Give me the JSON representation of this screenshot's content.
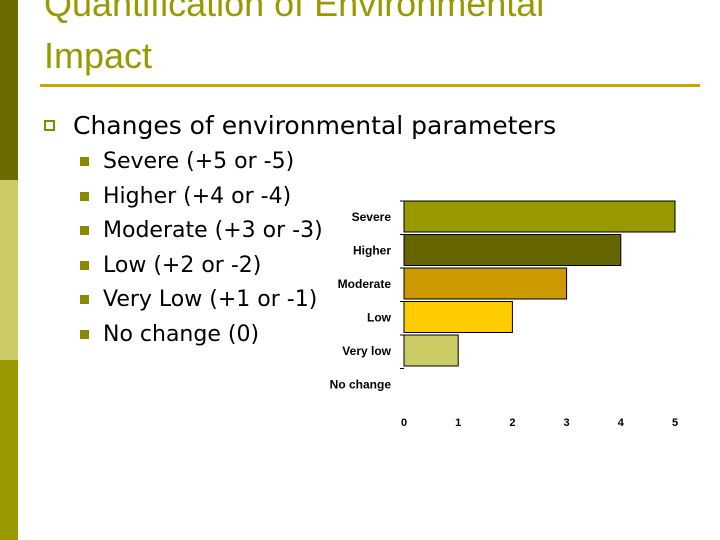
{
  "slide": {
    "title_line1": "Quantification of Environmental",
    "title_line2": "Impact",
    "bullet": "Changes of environmental parameters",
    "sub_bullets": [
      "Severe (+5 or -5)",
      "Higher (+4 or -4)",
      "Moderate (+3 or -3)",
      "Low (+2 or -2)",
      "Very Low (+1 or -1)",
      "No change (0)"
    ]
  },
  "colors": {
    "title": "#999900",
    "rule": "#c8a800",
    "sidebar": [
      "#6b6b00",
      "#cccc66",
      "#999900"
    ]
  },
  "chart_data": {
    "type": "bar",
    "orientation": "horizontal",
    "categories": [
      "Severe",
      "Higher",
      "Moderate",
      "Low",
      "Very low",
      "No change"
    ],
    "values": [
      5,
      4,
      3,
      2,
      1,
      0
    ],
    "colors": [
      "#999900",
      "#666600",
      "#cc9900",
      "#ffcc00",
      "#cccc66",
      "#cccc66"
    ],
    "xlim": [
      0,
      5
    ],
    "xticks": [
      "0",
      "1",
      "2",
      "3",
      "4",
      "5"
    ]
  }
}
